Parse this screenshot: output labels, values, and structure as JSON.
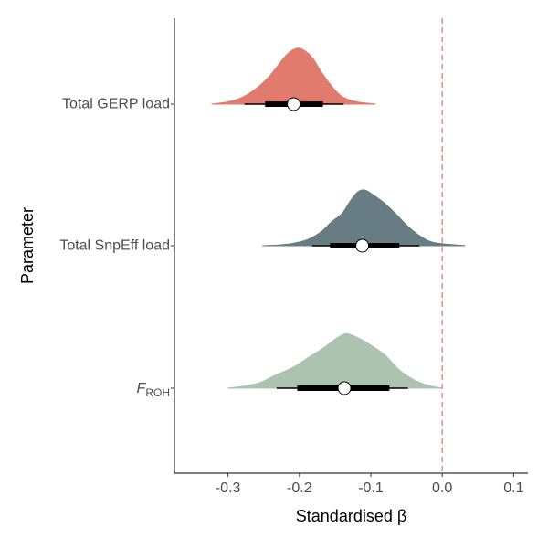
{
  "chart_data": {
    "type": "halfeye",
    "title": "",
    "xlabel": "Standardised β",
    "ylabel": "Parameter",
    "xlim": [
      -0.375,
      0.12
    ],
    "xticks": [
      -0.3,
      -0.2,
      -0.1,
      0.0,
      0.1
    ],
    "xtick_labels": [
      "-0.3",
      "-0.2",
      "-0.1",
      "0.0",
      "0.1"
    ],
    "reference_line": {
      "x": 0.0,
      "style": "dashed",
      "color": "#E8887B"
    },
    "grid": false,
    "series": [
      {
        "label": "Total GERP load",
        "color": "#E07B6D",
        "median": -0.208,
        "interval_inner": [
          -0.248,
          -0.167
        ],
        "interval_outer": [
          -0.277,
          -0.138
        ],
        "density_range": [
          -0.323,
          -0.093
        ],
        "density": [
          [
            -0.323,
            0.0
          ],
          [
            -0.3,
            0.04
          ],
          [
            -0.28,
            0.12
          ],
          [
            -0.262,
            0.26
          ],
          [
            -0.245,
            0.45
          ],
          [
            -0.23,
            0.68
          ],
          [
            -0.218,
            0.87
          ],
          [
            -0.205,
            0.98
          ],
          [
            -0.195,
            0.96
          ],
          [
            -0.182,
            0.82
          ],
          [
            -0.17,
            0.58
          ],
          [
            -0.155,
            0.32
          ],
          [
            -0.14,
            0.13
          ],
          [
            -0.12,
            0.04
          ],
          [
            -0.093,
            0.0
          ]
        ]
      },
      {
        "label": "Total SnpEff load",
        "color": "#677D83",
        "median": -0.112,
        "interval_inner": [
          -0.157,
          -0.06
        ],
        "interval_outer": [
          -0.182,
          -0.032
        ],
        "density_range": [
          -0.252,
          0.032
        ],
        "density": [
          [
            -0.252,
            0.0
          ],
          [
            -0.22,
            0.02
          ],
          [
            -0.19,
            0.1
          ],
          [
            -0.17,
            0.24
          ],
          [
            -0.155,
            0.42
          ],
          [
            -0.14,
            0.57
          ],
          [
            -0.128,
            0.8
          ],
          [
            -0.118,
            0.95
          ],
          [
            -0.108,
            0.98
          ],
          [
            -0.095,
            0.88
          ],
          [
            -0.08,
            0.74
          ],
          [
            -0.065,
            0.56
          ],
          [
            -0.048,
            0.34
          ],
          [
            -0.03,
            0.16
          ],
          [
            -0.01,
            0.05
          ],
          [
            0.032,
            0.0
          ]
        ]
      },
      {
        "label": "F",
        "label_subscript": "ROH",
        "color": "#ABC3AF",
        "median": -0.137,
        "interval_inner": [
          -0.203,
          -0.074
        ],
        "interval_outer": [
          -0.232,
          -0.048
        ],
        "density_range": [
          -0.301,
          0.0
        ],
        "density": [
          [
            -0.301,
            0.0
          ],
          [
            -0.28,
            0.03
          ],
          [
            -0.255,
            0.1
          ],
          [
            -0.235,
            0.22
          ],
          [
            -0.21,
            0.36
          ],
          [
            -0.19,
            0.52
          ],
          [
            -0.165,
            0.72
          ],
          [
            -0.148,
            0.88
          ],
          [
            -0.135,
            0.96
          ],
          [
            -0.12,
            0.9
          ],
          [
            -0.1,
            0.76
          ],
          [
            -0.08,
            0.58
          ],
          [
            -0.06,
            0.32
          ],
          [
            -0.04,
            0.15
          ],
          [
            -0.02,
            0.05
          ],
          [
            0.0,
            0.0
          ]
        ]
      }
    ]
  }
}
